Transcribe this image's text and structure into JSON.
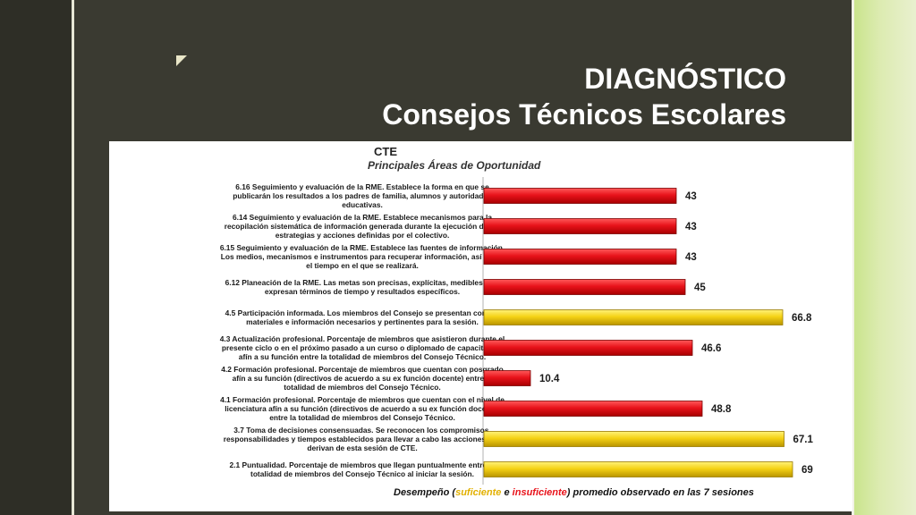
{
  "slide": {
    "title_line1": "DIAGNÓSTICO",
    "title_line2": "Consejos Técnicos Escolares",
    "colors": {
      "background": "#3a3a31",
      "accent": "#c9e48c",
      "title": "#ffffff"
    }
  },
  "chart_data": {
    "type": "bar",
    "orientation": "horizontal",
    "title": "CTE",
    "subtitle": "Principales  Áreas de Oportunidad",
    "legend": {
      "prefix": "Desempeño (",
      "label_sufficient": "suficiente",
      "connector": " e ",
      "label_insufficient": "insuficiente",
      "suffix": ") promedio observado en las 7 sesiones"
    },
    "xlim": [
      0,
      70
    ],
    "grid": false,
    "colors": {
      "insuficiente": "#e8131b",
      "suficiente": "#f5d215"
    },
    "categories": [
      [
        "6.16 Seguimiento y evaluación de la RME. Establece la forma en que se",
        "publicarán los resultados a los padres de familia, alumnos y autoridades",
        "educativas."
      ],
      [
        "6.14 Seguimiento y evaluación de la RME. Establece mecanismos para la",
        "recopilación sistemática de información generada durante la ejecución de las",
        "estrategias y acciones definidas por el colectivo."
      ],
      [
        "6.15 Seguimiento y evaluación de la RME. Establece las fuentes de información.",
        "Los medios, mecanismos e instrumentos para recuperar información, así como",
        "el tiempo en el que se realizará."
      ],
      [
        "6.12 Planeación de la RME. Las metas son precisas, explícitas, medibles y se",
        "expresan términos de tiempo y resultados específicos."
      ],
      [
        "4.5 Participación informada. Los miembros del Consejo se presentan con los",
        "materiales e información necesarios y pertinentes para la sesión."
      ],
      [
        "4.3 Actualización profesional. Porcentaje de miembros que asistieron durante el",
        "presente ciclo o en el próximo pasado a un curso o diplomado de capacitación",
        "afín a su función entre la totalidad de miembros del Consejo Técnico."
      ],
      [
        "4.2 Formación profesional. Porcentaje de miembros que cuentan con posgrado",
        "afín a su función (directivos de acuerdo a su ex función docente) entre la",
        "totalidad de miembros del Consejo Técnico."
      ],
      [
        "4.1 Formación profesional. Porcentaje de miembros que cuentan con el nivel de",
        "licenciatura afín a su función (directivos de acuerdo a su ex función docente)",
        "entre la totalidad de miembros del Consejo Técnico."
      ],
      [
        "3.7 Toma de decisiones consensuadas. Se reconocen los compromisos,",
        "responsabilidades y tiempos establecidos para llevar a cabo las acciones que",
        "derivan de esta sesión de CTE."
      ],
      [
        "2.1 Puntualidad. Porcentaje de miembros que llegan puntualmente entre la",
        "totalidad de miembros del Consejo Técnico al iniciar la sesión."
      ]
    ],
    "values": [
      43,
      43,
      43,
      45,
      66.8,
      46.6,
      10.4,
      48.8,
      67.1,
      69
    ],
    "value_labels": [
      "43",
      "43",
      "43",
      "45",
      "66.8",
      "46.6",
      "10.4",
      "48.8",
      "67.1",
      "69"
    ],
    "status": [
      "insuficiente",
      "insuficiente",
      "insuficiente",
      "insuficiente",
      "suficiente",
      "insuficiente",
      "insuficiente",
      "insuficiente",
      "suficiente",
      "suficiente"
    ]
  }
}
